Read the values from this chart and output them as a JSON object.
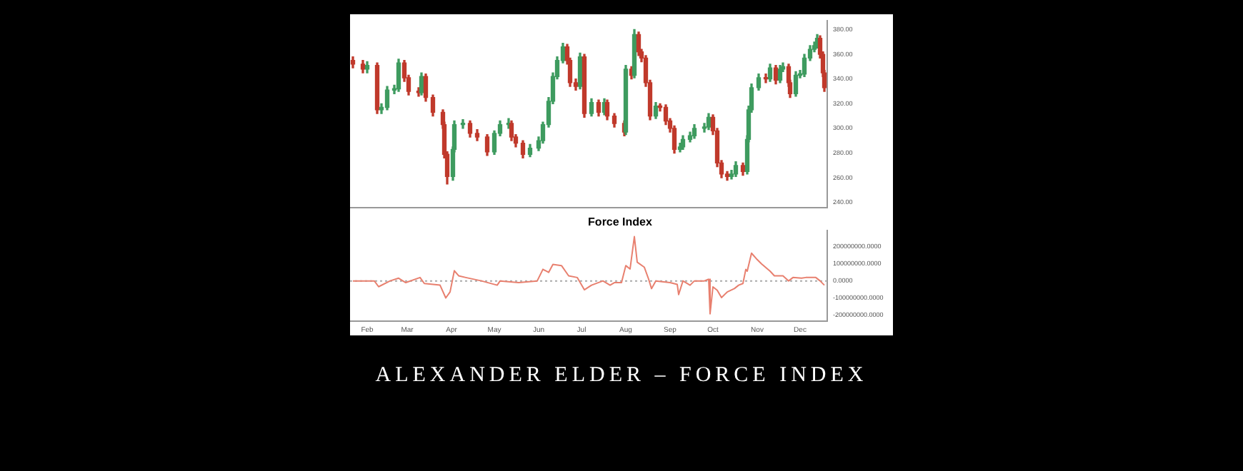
{
  "chart_data": [
    {
      "type": "candlestick",
      "xlim": [
        "--01-20",
        "--12-20"
      ],
      "ylim": [
        236,
        387
      ],
      "tick_labels": "y",
      "yticks": [
        {
          "value": 240,
          "label": "240.00"
        },
        {
          "value": 260,
          "label": "260.00"
        },
        {
          "value": 280,
          "label": "280.00"
        },
        {
          "value": 300,
          "label": "300.00"
        },
        {
          "value": 320,
          "label": "320.00"
        },
        {
          "value": 340,
          "label": "340.00"
        },
        {
          "value": 360,
          "label": "360.00"
        },
        {
          "value": 380,
          "label": "380.00"
        }
      ],
      "x": [
        "--01-22",
        "--01-29",
        "--02-01",
        "--02-08",
        "--02-11",
        "--02-15",
        "--02-20",
        "--02-23",
        "--02-27",
        "--03-02",
        "--03-09",
        "--03-11",
        "--03-14",
        "--03-19",
        "--03-26",
        "--03-27",
        "--03-29",
        "--04-02",
        "--04-03",
        "--04-09",
        "--04-14",
        "--04-19",
        "--04-26",
        "--05-01",
        "--05-05",
        "--05-11",
        "--05-13",
        "--05-16",
        "--05-21",
        "--05-26",
        "--06-01",
        "--06-04",
        "--06-08",
        "--06-11",
        "--06-14",
        "--06-18",
        "--06-21",
        "--06-23",
        "--06-27",
        "--06-30",
        "--07-03",
        "--07-08",
        "--07-13",
        "--07-17",
        "--07-19",
        "--07-24",
        "--07-31",
        "--08-01",
        "--08-05",
        "--08-07",
        "--08-10",
        "--08-12",
        "--08-15",
        "--08-18",
        "--08-22",
        "--08-25",
        "--08-29",
        "--09-01",
        "--09-04",
        "--09-08",
        "--09-10",
        "--09-15",
        "--09-18",
        "--09-25",
        "--09-28",
        "--10-01",
        "--10-04",
        "--10-07",
        "--10-11",
        "--10-14",
        "--10-17",
        "--10-22",
        "--10-25",
        "--10-26",
        "--10-28",
        "--11-02",
        "--11-07",
        "--11-10",
        "--11-14",
        "--11-17",
        "--11-19",
        "--11-23",
        "--11-24",
        "--11-28",
        "--12-01",
        "--12-04",
        "--12-08",
        "--12-11",
        "--12-13",
        "--12-15",
        "--12-17",
        "--12-18"
      ],
      "ohlc": [
        [
          355,
          358,
          349,
          352
        ],
        [
          352,
          355,
          345,
          348
        ],
        [
          348,
          354,
          345,
          351
        ],
        [
          351,
          353,
          312,
          315
        ],
        [
          315,
          320,
          312,
          317
        ],
        [
          317,
          334,
          315,
          331
        ],
        [
          331,
          335,
          328,
          332
        ],
        [
          332,
          356,
          330,
          353
        ],
        [
          353,
          355,
          338,
          341
        ],
        [
          341,
          343,
          327,
          330
        ],
        [
          330,
          333,
          326,
          329
        ],
        [
          329,
          345,
          327,
          342
        ],
        [
          342,
          344,
          322,
          325
        ],
        [
          325,
          327,
          310,
          313
        ],
        [
          313,
          315,
          300,
          303
        ],
        [
          303,
          305,
          276,
          279
        ],
        [
          279,
          281,
          255,
          261
        ],
        [
          261,
          285,
          258,
          283
        ],
        [
          283,
          306,
          281,
          303
        ],
        [
          303,
          307,
          300,
          304
        ],
        [
          304,
          306,
          293,
          296
        ],
        [
          296,
          299,
          290,
          293
        ],
        [
          293,
          295,
          278,
          281
        ],
        [
          281,
          298,
          279,
          296
        ],
        [
          296,
          306,
          294,
          303
        ],
        [
          303,
          308,
          300,
          304
        ],
        [
          304,
          306,
          290,
          293
        ],
        [
          293,
          295,
          285,
          288
        ],
        [
          288,
          290,
          276,
          279
        ],
        [
          279,
          287,
          277,
          284
        ],
        [
          284,
          293,
          282,
          290
        ],
        [
          290,
          305,
          288,
          303
        ],
        [
          303,
          325,
          301,
          322
        ],
        [
          322,
          345,
          320,
          342
        ],
        [
          342,
          358,
          340,
          355
        ],
        [
          355,
          369,
          353,
          366
        ],
        [
          366,
          368,
          352,
          355
        ],
        [
          355,
          357,
          334,
          337
        ],
        [
          337,
          340,
          331,
          334
        ],
        [
          334,
          361,
          332,
          358
        ],
        [
          358,
          360,
          309,
          312
        ],
        [
          312,
          324,
          310,
          321
        ],
        [
          321,
          323,
          310,
          313
        ],
        [
          313,
          324,
          311,
          321
        ],
        [
          321,
          323,
          307,
          310
        ],
        [
          310,
          312,
          301,
          304
        ],
        [
          304,
          306,
          294,
          297
        ],
        [
          297,
          351,
          295,
          348
        ],
        [
          348,
          350,
          340,
          343
        ],
        [
          343,
          380,
          341,
          376
        ],
        [
          376,
          378,
          359,
          362
        ],
        [
          362,
          364,
          354,
          357
        ],
        [
          357,
          359,
          334,
          337
        ],
        [
          337,
          339,
          307,
          310
        ],
        [
          310,
          321,
          308,
          318
        ],
        [
          318,
          320,
          314,
          317
        ],
        [
          317,
          319,
          303,
          306
        ],
        [
          306,
          308,
          297,
          300
        ],
        [
          300,
          302,
          280,
          283
        ],
        [
          283,
          288,
          281,
          285
        ],
        [
          285,
          294,
          283,
          291
        ],
        [
          291,
          297,
          289,
          294
        ],
        [
          294,
          303,
          292,
          300
        ],
        [
          300,
          304,
          297,
          301
        ],
        [
          301,
          312,
          299,
          309
        ],
        [
          309,
          311,
          295,
          298
        ],
        [
          298,
          300,
          269,
          272
        ],
        [
          272,
          274,
          260,
          263
        ],
        [
          263,
          265,
          258,
          261
        ],
        [
          261,
          266,
          259,
          263
        ],
        [
          263,
          273,
          261,
          270
        ],
        [
          270,
          272,
          262,
          265
        ],
        [
          265,
          294,
          263,
          291
        ],
        [
          291,
          318,
          289,
          315
        ],
        [
          315,
          336,
          313,
          333
        ],
        [
          333,
          344,
          331,
          341
        ],
        [
          341,
          344,
          337,
          340
        ],
        [
          340,
          352,
          338,
          349
        ],
        [
          349,
          351,
          336,
          339
        ],
        [
          339,
          351,
          337,
          348
        ],
        [
          348,
          353,
          346,
          350
        ],
        [
          350,
          352,
          334,
          337
        ],
        [
          337,
          339,
          325,
          328
        ],
        [
          328,
          346,
          326,
          343
        ],
        [
          343,
          347,
          341,
          344
        ],
        [
          344,
          360,
          342,
          357
        ],
        [
          357,
          367,
          355,
          364
        ],
        [
          364,
          370,
          362,
          367
        ],
        [
          367,
          376,
          365,
          373
        ],
        [
          373,
          375,
          357,
          360
        ],
        [
          360,
          362,
          342,
          345
        ],
        [
          345,
          347,
          330,
          333
        ]
      ],
      "colors": [
        "#c0392b",
        "#c0392b",
        "#3e9b5f",
        "#c0392b",
        "#3e9b5f",
        "#3e9b5f",
        "#3e9b5f",
        "#3e9b5f",
        "#c0392b",
        "#c0392b",
        "#c0392b",
        "#3e9b5f",
        "#c0392b",
        "#c0392b",
        "#c0392b",
        "#c0392b",
        "#c0392b",
        "#3e9b5f",
        "#3e9b5f",
        "#3e9b5f",
        "#c0392b",
        "#c0392b",
        "#c0392b",
        "#3e9b5f",
        "#3e9b5f",
        "#3e9b5f",
        "#c0392b",
        "#c0392b",
        "#c0392b",
        "#3e9b5f",
        "#3e9b5f",
        "#3e9b5f",
        "#3e9b5f",
        "#3e9b5f",
        "#3e9b5f",
        "#3e9b5f",
        "#c0392b",
        "#c0392b",
        "#c0392b",
        "#3e9b5f",
        "#c0392b",
        "#3e9b5f",
        "#c0392b",
        "#3e9b5f",
        "#c0392b",
        "#c0392b",
        "#c0392b",
        "#3e9b5f",
        "#c0392b",
        "#3e9b5f",
        "#c0392b",
        "#c0392b",
        "#c0392b",
        "#c0392b",
        "#3e9b5f",
        "#c0392b",
        "#c0392b",
        "#c0392b",
        "#c0392b",
        "#3e9b5f",
        "#3e9b5f",
        "#3e9b5f",
        "#3e9b5f",
        "#3e9b5f",
        "#3e9b5f",
        "#c0392b",
        "#c0392b",
        "#c0392b",
        "#c0392b",
        "#3e9b5f",
        "#3e9b5f",
        "#c0392b",
        "#3e9b5f",
        "#3e9b5f",
        "#3e9b5f",
        "#3e9b5f",
        "#c0392b",
        "#3e9b5f",
        "#c0392b",
        "#3e9b5f",
        "#3e9b5f",
        "#c0392b",
        "#c0392b",
        "#3e9b5f",
        "#3e9b5f",
        "#3e9b5f",
        "#3e9b5f",
        "#3e9b5f",
        "#3e9b5f",
        "#c0392b",
        "#c0392b",
        "#c0392b"
      ]
    },
    {
      "type": "line",
      "title": "Force Index",
      "xlim": [
        "--01-20",
        "--12-20"
      ],
      "ylim": [
        -236000000,
        295000000
      ],
      "xticks": [
        {
          "value": "--02-01",
          "label": "Feb"
        },
        {
          "value": "--03-01",
          "label": "Mar"
        },
        {
          "value": "--04-01",
          "label": "Apr"
        },
        {
          "value": "--05-01",
          "label": "May"
        },
        {
          "value": "--06-01",
          "label": "Jun"
        },
        {
          "value": "--07-01",
          "label": "Jul"
        },
        {
          "value": "--08-01",
          "label": "Aug"
        },
        {
          "value": "--09-01",
          "label": "Sep"
        },
        {
          "value": "--10-01",
          "label": "Oct"
        },
        {
          "value": "--11-01",
          "label": "Nov"
        },
        {
          "value": "--12-01",
          "label": "Dec"
        }
      ],
      "yticks": [
        {
          "value": -200000000,
          "label": "-200000000.0000"
        },
        {
          "value": -100000000,
          "label": "-100000000.0000"
        },
        {
          "value": 0,
          "label": "0.0000"
        },
        {
          "value": 100000000,
          "label": "100000000.0000"
        },
        {
          "value": 200000000,
          "label": "200000000.0000"
        }
      ],
      "x": [
        "--01-22",
        "--02-06",
        "--02-09",
        "--02-17",
        "--02-23",
        "--02-28",
        "--03-10",
        "--03-13",
        "--03-24",
        "--03-28",
        "--03-31",
        "--04-03",
        "--04-06",
        "--04-11",
        "--04-22",
        "--05-03",
        "--05-05",
        "--05-18",
        "--05-31",
        "--06-04",
        "--06-08",
        "--06-11",
        "--06-17",
        "--06-22",
        "--06-28",
        "--07-03",
        "--07-08",
        "--07-16",
        "--07-21",
        "--07-24",
        "--07-29",
        "--08-01",
        "--08-04",
        "--08-07",
        "--08-09",
        "--08-14",
        "--08-17",
        "--08-19",
        "--08-22",
        "--09-01",
        "--09-06",
        "--09-07",
        "--09-10",
        "--09-15",
        "--09-18",
        "--09-25",
        "--09-28",
        "--09-29",
        "--10-01",
        "--10-04",
        "--10-07",
        "--10-11",
        "--10-16",
        "--10-19",
        "--10-22",
        "--10-24",
        "--10-25",
        "--10-28",
        "--11-01",
        "--11-04",
        "--11-10",
        "--11-13",
        "--11-19",
        "--11-23",
        "--11-26",
        "--12-02",
        "--12-05",
        "--12-12",
        "--12-15",
        "--12-18"
      ],
      "series": [
        {
          "color": "#e8806f",
          "line_style": "solid",
          "values": [
            0,
            0,
            -34000000,
            0,
            16000000,
            -10000000,
            20000000,
            -15000000,
            -25000000,
            -100000000,
            -65000000,
            60000000,
            30000000,
            20000000,
            0,
            -25000000,
            0,
            -10000000,
            0,
            68000000,
            50000000,
            97000000,
            90000000,
            30000000,
            20000000,
            -52000000,
            -25000000,
            0,
            -25000000,
            -10000000,
            -10000000,
            90000000,
            70000000,
            260000000,
            110000000,
            80000000,
            10000000,
            -45000000,
            0,
            -10000000,
            -20000000,
            -80000000,
            0,
            -25000000,
            0,
            0,
            10000000,
            -193000000,
            -35000000,
            -55000000,
            -98000000,
            -65000000,
            -45000000,
            -25000000,
            -15000000,
            68000000,
            57000000,
            163000000,
            125000000,
            100000000,
            57000000,
            30000000,
            30000000,
            0,
            20000000,
            16000000,
            20000000,
            20000000,
            0,
            -25000000
          ]
        }
      ],
      "ref_lines": [
        {
          "axis": "y",
          "value": 0,
          "color": "#aaaaaa",
          "line_style": "dotted"
        }
      ],
      "annotations": [
        "ALEXANDER ELDER – FORCE INDEX"
      ]
    }
  ]
}
